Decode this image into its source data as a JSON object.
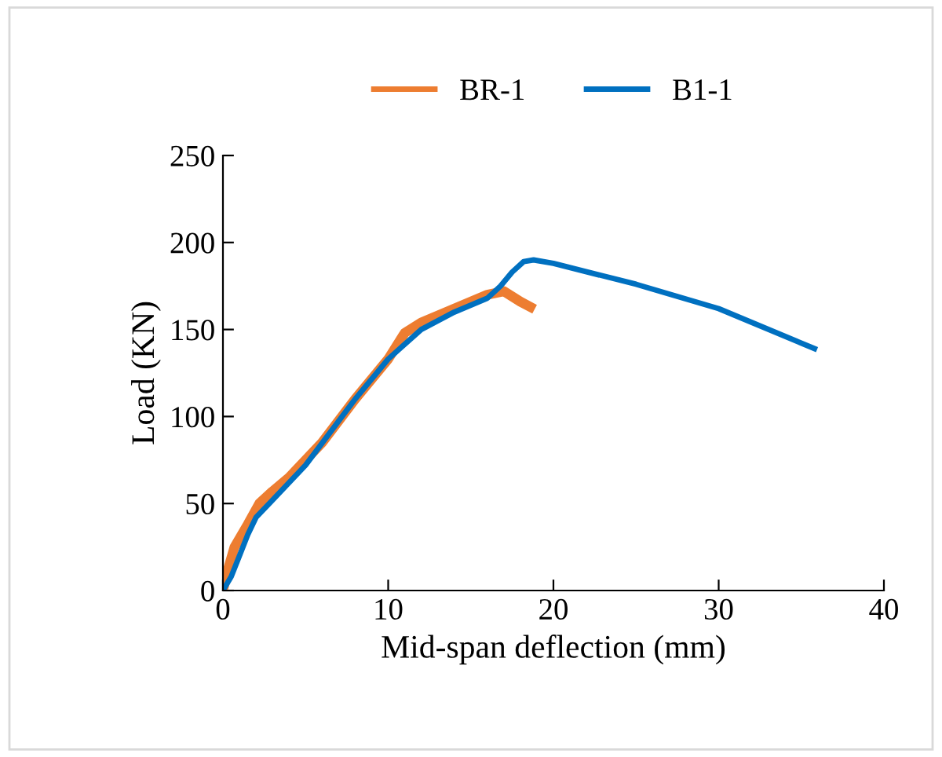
{
  "chart_data": {
    "type": "line",
    "xlabel": "Mid-span deflection (mm)",
    "ylabel": "Load (KN)",
    "xlim": [
      0,
      40
    ],
    "xticks": [
      0,
      10,
      20,
      30,
      40
    ],
    "ylim": [
      0,
      250
    ],
    "yticks": [
      0,
      50,
      100,
      150,
      200,
      250
    ],
    "grid": false,
    "legend": "top",
    "marker": "none",
    "line_style": "solid",
    "series": [
      {
        "name": "BR-1",
        "color": "#ed7d31",
        "x": [
          0,
          0.3,
          0.7,
          1.5,
          2.2,
          3,
          4,
          6,
          8,
          10,
          11,
          12,
          14,
          16,
          17,
          18,
          18.6
        ],
        "values": [
          0,
          12,
          25,
          38,
          50,
          57,
          65,
          85,
          110,
          133,
          148,
          154,
          162,
          170,
          172,
          166,
          163
        ]
      },
      {
        "name": "B1-1",
        "color": "#0070c0",
        "x": [
          0,
          0.5,
          1,
          1.5,
          2,
          3,
          5,
          8,
          10,
          12,
          14,
          16,
          16.8,
          17.5,
          18.2,
          18.8,
          20,
          25,
          30,
          35.8
        ],
        "values": [
          0,
          8,
          20,
          32,
          42,
          52,
          72,
          110,
          133,
          150,
          160,
          168,
          175,
          183,
          189,
          190,
          188,
          176,
          162,
          139
        ]
      }
    ]
  }
}
